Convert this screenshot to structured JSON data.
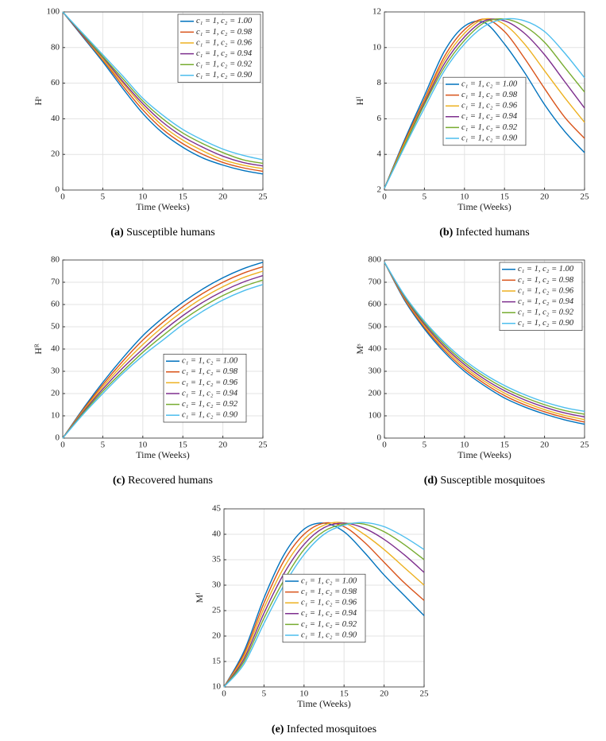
{
  "chart_data": [
    {
      "type": "line",
      "caption_label": "(a)",
      "caption": "Susceptible humans",
      "xlabel": "Time (Weeks)",
      "ylabel": "Hˢ",
      "legend": "northeast",
      "grid": true,
      "xlim": [
        0,
        25
      ],
      "xticks": [
        0,
        5,
        10,
        15,
        20,
        25
      ],
      "ylim": [
        0,
        100
      ],
      "yticks": [
        0,
        20,
        40,
        60,
        80,
        100
      ],
      "x": [
        0,
        2.5,
        5,
        7.5,
        10,
        12.5,
        15,
        17.5,
        20,
        22.5,
        25
      ],
      "series": [
        {
          "name": "c₁ = 1, c₂ = 1.00",
          "color": "#0072BD",
          "values": [
            100,
            86,
            72,
            57,
            43,
            32,
            24,
            18,
            14,
            11,
            9
          ]
        },
        {
          "name": "c₁ = 1, c₂ = 0.98",
          "color": "#D95319",
          "values": [
            100,
            86.5,
            73,
            58.5,
            45,
            34,
            26,
            20,
            15.5,
            12.5,
            10.5
          ]
        },
        {
          "name": "c₁ = 1, c₂ = 0.96",
          "color": "#EDB120",
          "values": [
            100,
            87,
            73.5,
            60,
            47,
            36,
            28,
            22,
            17,
            14,
            12
          ]
        },
        {
          "name": "c₁ = 1, c₂ = 0.94",
          "color": "#7E2F8E",
          "values": [
            100,
            87,
            74.5,
            61,
            48.5,
            38,
            30,
            24,
            19,
            15.5,
            13.5
          ]
        },
        {
          "name": "c₁ = 1, c₂ = 0.92",
          "color": "#77AC30",
          "values": [
            100,
            87.5,
            75,
            62.5,
            50,
            40,
            32,
            26,
            21,
            17,
            15
          ]
        },
        {
          "name": "c₁ = 1, c₂ = 0.90",
          "color": "#4DBEEE",
          "values": [
            100,
            88,
            76,
            64,
            51.5,
            42,
            34,
            28,
            23,
            19.5,
            17
          ]
        }
      ]
    },
    {
      "type": "line",
      "caption_label": "(b)",
      "caption": "Infected humans",
      "xlabel": "Time (Weeks)",
      "ylabel": "Hᴵ",
      "legend": "center",
      "grid": true,
      "xlim": [
        0,
        25
      ],
      "xticks": [
        0,
        5,
        10,
        15,
        20,
        25
      ],
      "ylim": [
        2,
        12
      ],
      "yticks": [
        2,
        4,
        6,
        8,
        10,
        12
      ],
      "x": [
        0,
        2.5,
        5,
        7.5,
        10,
        12.5,
        15,
        17.5,
        20,
        22.5,
        25
      ],
      "series": [
        {
          "name": "c₁ = 1, c₂ = 1.00",
          "color": "#0072BD",
          "values": [
            2.1,
            4.8,
            7.3,
            9.8,
            11.2,
            11.4,
            10.2,
            8.6,
            6.8,
            5.3,
            4.1
          ]
        },
        {
          "name": "c₁ = 1, c₂ = 0.98",
          "color": "#D95319",
          "values": [
            2.1,
            4.7,
            7.1,
            9.5,
            11.0,
            11.6,
            10.9,
            9.4,
            7.7,
            6.1,
            4.9
          ]
        },
        {
          "name": "c₁ = 1, c₂ = 0.96",
          "color": "#EDB120",
          "values": [
            2.1,
            4.6,
            7.0,
            9.3,
            10.8,
            11.6,
            11.3,
            10.2,
            8.7,
            7.2,
            5.8
          ]
        },
        {
          "name": "c₁ = 1, c₂ = 0.94",
          "color": "#7E2F8E",
          "values": [
            2.1,
            4.5,
            6.9,
            9.1,
            10.6,
            11.5,
            11.5,
            10.8,
            9.6,
            8.1,
            6.6
          ]
        },
        {
          "name": "c₁ = 1, c₂ = 0.92",
          "color": "#77AC30",
          "values": [
            2.1,
            4.5,
            6.8,
            8.9,
            10.4,
            11.4,
            11.6,
            11.2,
            10.3,
            8.9,
            7.5
          ]
        },
        {
          "name": "c₁ = 1, c₂ = 0.90",
          "color": "#4DBEEE",
          "values": [
            2.1,
            4.4,
            6.6,
            8.7,
            10.2,
            11.2,
            11.6,
            11.5,
            10.9,
            9.7,
            8.3
          ]
        }
      ]
    },
    {
      "type": "line",
      "caption_label": "(c)",
      "caption": "Recovered humans",
      "xlabel": "Time (Weeks)",
      "ylabel": "Hᴿ",
      "legend": "southeast",
      "grid": true,
      "xlim": [
        0,
        25
      ],
      "xticks": [
        0,
        5,
        10,
        15,
        20,
        25
      ],
      "ylim": [
        0,
        80
      ],
      "yticks": [
        0,
        10,
        20,
        30,
        40,
        50,
        60,
        70,
        80
      ],
      "x": [
        0,
        2.5,
        5,
        7.5,
        10,
        12.5,
        15,
        17.5,
        20,
        22.5,
        25
      ],
      "series": [
        {
          "name": "c₁ = 1, c₂ = 1.00",
          "color": "#0072BD",
          "values": [
            0,
            13,
            25,
            36,
            46,
            54,
            61,
            67,
            72,
            76,
            79
          ]
        },
        {
          "name": "c₁ = 1, c₂ = 0.98",
          "color": "#D95319",
          "values": [
            0,
            12.5,
            24,
            34.5,
            44,
            52,
            59,
            65,
            70,
            74,
            77
          ]
        },
        {
          "name": "c₁ = 1, c₂ = 0.96",
          "color": "#EDB120",
          "values": [
            0,
            12,
            23,
            33,
            42,
            50,
            57,
            63,
            68,
            72,
            75
          ]
        },
        {
          "name": "c₁ = 1, c₂ = 0.94",
          "color": "#7E2F8E",
          "values": [
            0,
            11.5,
            22,
            31.5,
            40,
            48,
            55,
            61,
            66,
            70,
            73
          ]
        },
        {
          "name": "c₁ = 1, c₂ = 0.92",
          "color": "#77AC30",
          "values": [
            0,
            11,
            21,
            30,
            38.5,
            46,
            53,
            59,
            64,
            68,
            71
          ]
        },
        {
          "name": "c₁ = 1, c₂ = 0.90",
          "color": "#4DBEEE",
          "values": [
            0,
            10.5,
            20,
            29,
            37,
            44,
            51,
            57,
            62,
            66,
            69
          ]
        }
      ]
    },
    {
      "type": "line",
      "caption_label": "(d)",
      "caption": "Susceptible mosquitoes",
      "xlabel": "Time (Weeks)",
      "ylabel": "Mˢ",
      "legend": "northeast",
      "grid": true,
      "xlim": [
        0,
        25
      ],
      "xticks": [
        0,
        5,
        10,
        15,
        20,
        25
      ],
      "ylim": [
        0,
        800
      ],
      "yticks": [
        0,
        100,
        200,
        300,
        400,
        500,
        600,
        700,
        800
      ],
      "x": [
        0,
        2.5,
        5,
        7.5,
        10,
        12.5,
        15,
        17.5,
        20,
        22.5,
        25
      ],
      "series": [
        {
          "name": "c₁ = 1, c₂ = 1.00",
          "color": "#0072BD",
          "values": [
            790,
            620,
            490,
            385,
            300,
            235,
            180,
            140,
            108,
            82,
            62
          ]
        },
        {
          "name": "c₁ = 1, c₂ = 0.98",
          "color": "#D95319",
          "values": [
            790,
            625,
            497,
            394,
            310,
            245,
            191,
            150,
            118,
            92,
            72
          ]
        },
        {
          "name": "c₁ = 1, c₂ = 0.96",
          "color": "#EDB120",
          "values": [
            790,
            630,
            504,
            403,
            320,
            255,
            202,
            161,
            128,
            102,
            83
          ]
        },
        {
          "name": "c₁ = 1, c₂ = 0.94",
          "color": "#7E2F8E",
          "values": [
            790,
            634,
            511,
            411,
            330,
            265,
            213,
            172,
            139,
            113,
            95
          ]
        },
        {
          "name": "c₁ = 1, c₂ = 0.92",
          "color": "#77AC30",
          "values": [
            790,
            638,
            518,
            420,
            340,
            276,
            224,
            183,
            150,
            124,
            107
          ]
        },
        {
          "name": "c₁ = 1, c₂ = 0.90",
          "color": "#4DBEEE",
          "values": [
            790,
            642,
            525,
            429,
            350,
            287,
            236,
            195,
            162,
            137,
            120
          ]
        }
      ]
    },
    {
      "type": "line",
      "caption_label": "(e)",
      "caption": "Infected mosquitoes",
      "xlabel": "Time (Weeks)",
      "ylabel": "Mᴵ",
      "legend": "center",
      "grid": true,
      "xlim": [
        0,
        25
      ],
      "xticks": [
        0,
        5,
        10,
        15,
        20,
        25
      ],
      "ylim": [
        10,
        45
      ],
      "yticks": [
        10,
        15,
        20,
        25,
        30,
        35,
        40,
        45
      ],
      "x": [
        0,
        2.5,
        5,
        7.5,
        10,
        12.5,
        15,
        17.5,
        20,
        22.5,
        25
      ],
      "series": [
        {
          "name": "c₁ = 1, c₂ = 1.00",
          "color": "#0072BD",
          "values": [
            10,
            17,
            27.5,
            36,
            41,
            42.2,
            40.5,
            36.5,
            32,
            28,
            24
          ]
        },
        {
          "name": "c₁ = 1, c₂ = 0.98",
          "color": "#D95319",
          "values": [
            10,
            16.5,
            26.5,
            34.8,
            40,
            42.2,
            41.5,
            38.5,
            34.5,
            30.5,
            27
          ]
        },
        {
          "name": "c₁ = 1, c₂ = 0.96",
          "color": "#EDB120",
          "values": [
            10,
            16,
            25.5,
            33.5,
            39,
            41.8,
            42.2,
            40,
            37,
            33.5,
            30
          ]
        },
        {
          "name": "c₁ = 1, c₂ = 0.94",
          "color": "#7E2F8E",
          "values": [
            10,
            15.5,
            24.5,
            32.3,
            38,
            41.3,
            42.2,
            41.2,
            39,
            36,
            32.5
          ]
        },
        {
          "name": "c₁ = 1, c₂ = 0.92",
          "color": "#77AC30",
          "values": [
            10,
            15,
            23.5,
            31,
            37,
            40.6,
            42,
            42,
            40.5,
            38,
            35
          ]
        },
        {
          "name": "c₁ = 1, c₂ = 0.90",
          "color": "#4DBEEE",
          "values": [
            10,
            14.5,
            22.5,
            30,
            36,
            40,
            41.8,
            42.3,
            41.5,
            39.5,
            37
          ]
        }
      ]
    }
  ]
}
